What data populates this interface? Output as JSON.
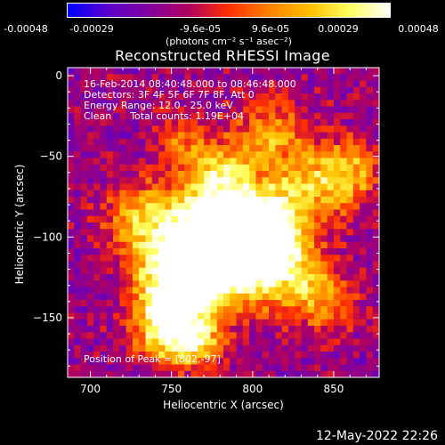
{
  "colorbar": {
    "tick_labels": [
      "-0.00048",
      "-0.00029",
      "-9.6e-05",
      "9.6e-05",
      "0.00029",
      "0.00048"
    ],
    "tick_values": [
      -0.00048,
      -0.00029,
      -9.6e-05,
      9.6e-05,
      0.00029,
      0.00048
    ],
    "range": [
      -0.00048,
      0.00048
    ],
    "units_label": "(photons cm⁻² s⁻¹ asec⁻²)",
    "colors": [
      "#0000ff",
      "#5a00cc",
      "#8000a0",
      "#b00060",
      "#ff3000",
      "#ff8000",
      "#ffc000",
      "#ffff60",
      "#ffffff"
    ]
  },
  "chart_data": {
    "type": "heatmap",
    "title": "Reconstructed RHESSI Image",
    "xlabel": "Heliocentric X (arcsec)",
    "ylabel": "Heliocentric Y (arcsec)",
    "xlim": [
      686,
      878
    ],
    "ylim": [
      -187,
      5
    ],
    "xticks": [
      700,
      750,
      800,
      850
    ],
    "yticks": [
      0,
      -50,
      -100,
      -150
    ],
    "peak": [
      802,
      -97
    ],
    "annotations": {
      "time_range": "16-Feb-2014 08:40:48.000 to 08:46:48.000",
      "detectors": "Detectors: 3F 4F 5F 6F 7F 8F, Att 0",
      "energy_range": "Energy Range: 12.0 - 25.0 keV",
      "clean_counts": "Clean      Total counts: 1.19E+04",
      "peak_position": "Position of Peak = [802,-97]"
    }
  },
  "footer": {
    "date": "12-May-2022 22:26"
  }
}
